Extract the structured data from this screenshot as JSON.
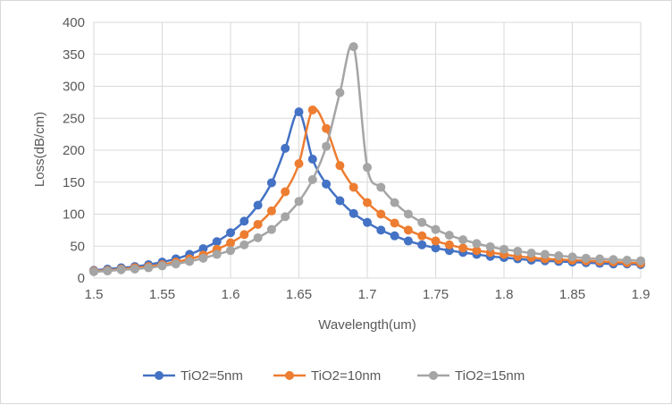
{
  "chart_data": {
    "type": "line",
    "title": "",
    "xlabel": "Wavelength(um)",
    "ylabel": "Loss(dB/cm)",
    "xlim": [
      1.5,
      1.9
    ],
    "ylim": [
      0,
      400
    ],
    "x_ticks": [
      "1.5",
      "1.55",
      "1.6",
      "1.65",
      "1.7",
      "1.75",
      "1.8",
      "1.85",
      "1.9"
    ],
    "y_ticks": [
      "0",
      "50",
      "100",
      "150",
      "200",
      "250",
      "300",
      "350",
      "400"
    ],
    "grid": true,
    "legend_position": "bottom",
    "x": [
      1.5,
      1.51,
      1.52,
      1.53,
      1.54,
      1.55,
      1.56,
      1.57,
      1.58,
      1.59,
      1.6,
      1.61,
      1.62,
      1.63,
      1.64,
      1.65,
      1.66,
      1.67,
      1.68,
      1.69,
      1.7,
      1.71,
      1.72,
      1.73,
      1.74,
      1.75,
      1.76,
      1.77,
      1.78,
      1.79,
      1.8,
      1.81,
      1.82,
      1.83,
      1.84,
      1.85,
      1.86,
      1.87,
      1.88,
      1.89,
      1.9
    ],
    "series": [
      {
        "name": "TiO2=5nm",
        "color": "#4472c4",
        "values": [
          12,
          14,
          16,
          18,
          21,
          25,
          30,
          37,
          46,
          57,
          71,
          89,
          114,
          149,
          203,
          260,
          186,
          147,
          121,
          101,
          87,
          75,
          66,
          58,
          52,
          47,
          43,
          40,
          37,
          34,
          32,
          30,
          28,
          27,
          26,
          25,
          24,
          23,
          22,
          22,
          21
        ]
      },
      {
        "name": "TiO2=10nm",
        "color": "#ed7d31",
        "values": [
          11,
          12,
          14,
          16,
          18,
          21,
          25,
          30,
          36,
          45,
          55,
          68,
          84,
          105,
          135,
          179,
          263,
          234,
          176,
          142,
          118,
          100,
          86,
          75,
          66,
          58,
          52,
          47,
          43,
          40,
          37,
          34,
          32,
          30,
          29,
          28,
          27,
          26,
          25,
          24,
          23
        ]
      },
      {
        "name": "TiO2=15nm",
        "color": "#a5a5a5",
        "values": [
          10,
          11,
          13,
          14,
          16,
          19,
          22,
          26,
          31,
          37,
          43,
          52,
          63,
          76,
          96,
          120,
          154,
          206,
          290,
          362,
          173,
          142,
          118,
          100,
          87,
          76,
          67,
          60,
          54,
          49,
          45,
          42,
          39,
          37,
          35,
          33,
          31,
          30,
          29,
          28,
          27
        ]
      }
    ]
  }
}
